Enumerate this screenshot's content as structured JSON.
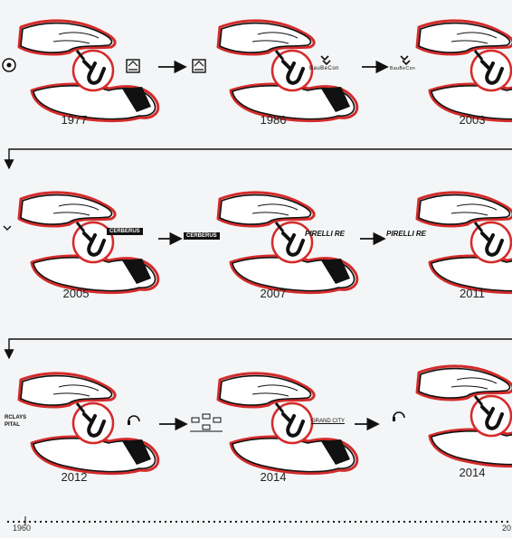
{
  "years": [
    "1977",
    "1986",
    "2003",
    "2005",
    "2007",
    "2011",
    "2012",
    "2014",
    "2014"
  ],
  "logos": {
    "baubecon": "BauBeCon",
    "cerberus": "CERBERUS",
    "pirelli": "PIRELLI RE",
    "barclays_line1": "RCLAYS",
    "barclays_line2": "PITAL",
    "grand_city": "GRAND CITY"
  },
  "timeline": {
    "start": "1960",
    "end": "20"
  },
  "colors": {
    "accent": "#d42b2b",
    "ink": "#111111",
    "background": "#f4f5f6"
  }
}
